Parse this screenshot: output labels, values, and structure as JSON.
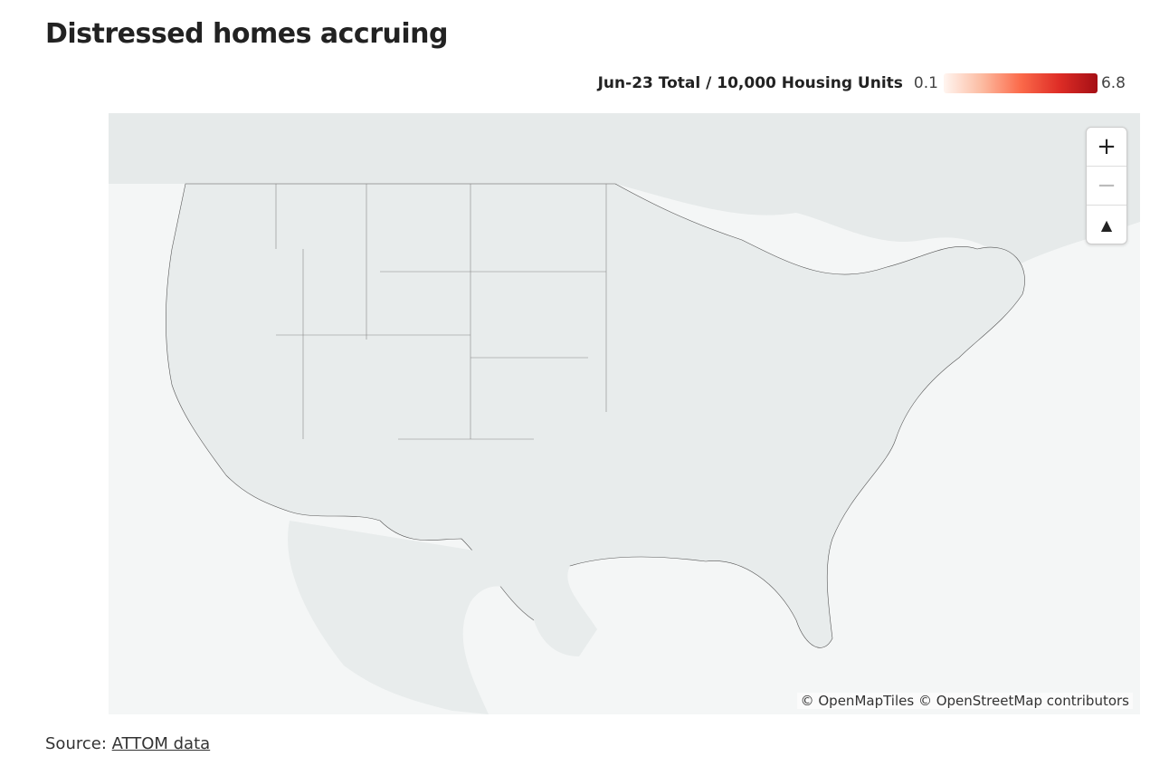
{
  "header": {
    "title": "Distressed homes accruing"
  },
  "legend": {
    "title": "Jun-23 Total / 10,000 Housing Units",
    "min": 0.1,
    "max": 6.8,
    "colors": [
      "#fff5f0",
      "#fcbba1",
      "#fb6a4a",
      "#de2d26",
      "#a50f15"
    ]
  },
  "map": {
    "attribution": "© OpenMapTiles © OpenStreetMap contributors"
  },
  "footer": {
    "source_label": "Source:",
    "source_link": "ATTOM data"
  }
}
